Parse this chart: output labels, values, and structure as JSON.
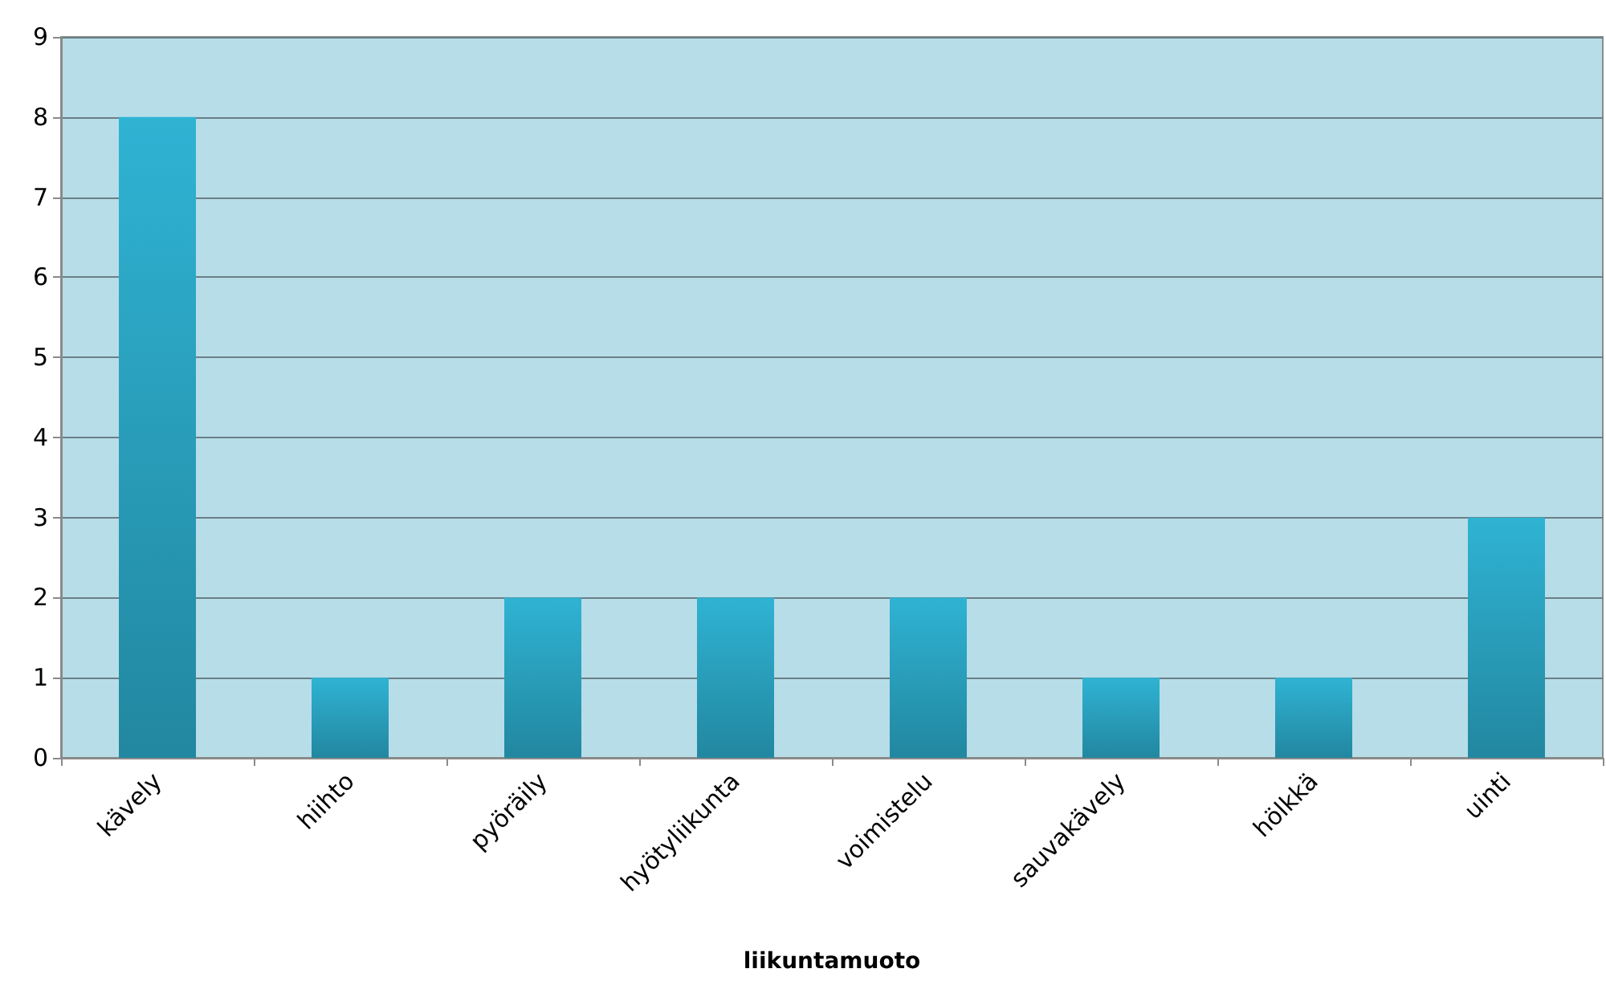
{
  "chart_data": {
    "type": "bar",
    "xlabel": "liikuntamuoto",
    "categories": [
      "kävely",
      "hiihto",
      "pyöräily",
      "hyötyliikunta",
      "voimistelu",
      "sauvakävely",
      "hölkkä",
      "uinti"
    ],
    "values": [
      8,
      1,
      2,
      2,
      2,
      1,
      1,
      3
    ],
    "color": "#2fb3d3",
    "ylim": [
      0,
      9
    ],
    "yticks": [
      0,
      1,
      2,
      3,
      4,
      5,
      6,
      7,
      8,
      9
    ],
    "grid": "y"
  }
}
